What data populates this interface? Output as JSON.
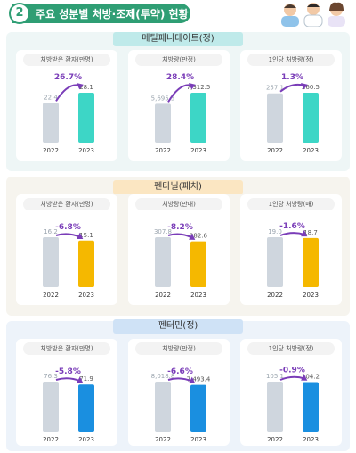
{
  "header": {
    "number": "2",
    "title": "주요 성분별 처방·조제(투약) 현황"
  },
  "colors": {
    "header_green": "#2f9e74",
    "prior_bar": "#cfd6de",
    "teal": "#3dd6c6",
    "amber": "#f5b800",
    "blue": "#1a8fe0",
    "arrow_purple": "#7a3db8"
  },
  "sections": [
    {
      "title": "메틸페니데이트(정)",
      "color": "#3dd6c6",
      "panels": [
        {
          "label": "처방받은 환자(만명)",
          "x": [
            "2022",
            "2023"
          ],
          "values": [
            22.4,
            28.1
          ],
          "value_labels": [
            "22.4",
            "28.1"
          ],
          "change": "26.7%",
          "trend": "up"
        },
        {
          "label": "처방량(만정)",
          "x": [
            "2022",
            "2023"
          ],
          "values": [
            5695.3,
            7312.5
          ],
          "value_labels": [
            "5,695.3",
            "7,312.5"
          ],
          "change": "28.4%",
          "trend": "up"
        },
        {
          "label": "1인당 처방량(정)",
          "x": [
            "2022",
            "2023"
          ],
          "values": [
            257.1,
            260.5
          ],
          "value_labels": [
            "257.1",
            "260.5"
          ],
          "change": "1.3%",
          "trend": "up"
        }
      ]
    },
    {
      "title": "펜타닐(패치)",
      "color": "#f5b800",
      "panels": [
        {
          "label": "처방받은 환자(만명)",
          "x": [
            "2022",
            "2023"
          ],
          "values": [
            16.2,
            15.1
          ],
          "value_labels": [
            "16.2",
            "15.1"
          ],
          "change": "-6.8%",
          "trend": "down"
        },
        {
          "label": "처방량(만매)",
          "x": [
            "2022",
            "2023"
          ],
          "values": [
            307.8,
            282.6
          ],
          "value_labels": [
            "307.8",
            "282.6"
          ],
          "change": "-8.2%",
          "trend": "down"
        },
        {
          "label": "1인당 처방량(매)",
          "x": [
            "2022",
            "2023"
          ],
          "values": [
            19.0,
            18.7
          ],
          "value_labels": [
            "19.0",
            "18.7"
          ],
          "change": "-1.6%",
          "trend": "down"
        }
      ]
    },
    {
      "title": "펜터민(정)",
      "color": "#1a8fe0",
      "panels": [
        {
          "label": "처방받은 환자(만명)",
          "x": [
            "2022",
            "2023"
          ],
          "values": [
            76.3,
            71.9
          ],
          "value_labels": [
            "76.3",
            "71.9"
          ],
          "change": "-5.8%",
          "trend": "down"
        },
        {
          "label": "처방량(만정)",
          "x": [
            "2022",
            "2023"
          ],
          "values": [
            8018.8,
            7493.4
          ],
          "value_labels": [
            "8,018.8",
            "7,493.4"
          ],
          "change": "-6.6%",
          "trend": "down"
        },
        {
          "label": "1인당 처방량(정)",
          "x": [
            "2022",
            "2023"
          ],
          "values": [
            105.1,
            104.2
          ],
          "value_labels": [
            "105.1",
            "104.2"
          ],
          "change": "-0.9%",
          "trend": "down"
        }
      ]
    }
  ],
  "chart_data": [
    {
      "type": "bar",
      "title": "메틸페니데이트(정) 처방받은 환자(만명)",
      "categories": [
        "2022",
        "2023"
      ],
      "values": [
        22.4,
        28.1
      ]
    },
    {
      "type": "bar",
      "title": "메틸페니데이트(정) 처방량(만정)",
      "categories": [
        "2022",
        "2023"
      ],
      "values": [
        5695.3,
        7312.5
      ]
    },
    {
      "type": "bar",
      "title": "메틸페니데이트(정) 1인당 처방량(정)",
      "categories": [
        "2022",
        "2023"
      ],
      "values": [
        257.1,
        260.5
      ]
    },
    {
      "type": "bar",
      "title": "펜타닐(패치) 처방받은 환자(만명)",
      "categories": [
        "2022",
        "2023"
      ],
      "values": [
        16.2,
        15.1
      ]
    },
    {
      "type": "bar",
      "title": "펜타닐(패치) 처방량(만매)",
      "categories": [
        "2022",
        "2023"
      ],
      "values": [
        307.8,
        282.6
      ]
    },
    {
      "type": "bar",
      "title": "펜타닐(패치) 1인당 처방량(매)",
      "categories": [
        "2022",
        "2023"
      ],
      "values": [
        19.0,
        18.7
      ]
    },
    {
      "type": "bar",
      "title": "펜터민(정) 처방받은 환자(만명)",
      "categories": [
        "2022",
        "2023"
      ],
      "values": [
        76.3,
        71.9
      ]
    },
    {
      "type": "bar",
      "title": "펜터민(정) 처방량(만정)",
      "categories": [
        "2022",
        "2023"
      ],
      "values": [
        8018.8,
        7493.4
      ]
    },
    {
      "type": "bar",
      "title": "펜터민(정) 1인당 처방량(정)",
      "categories": [
        "2022",
        "2023"
      ],
      "values": [
        105.1,
        104.2
      ]
    }
  ]
}
